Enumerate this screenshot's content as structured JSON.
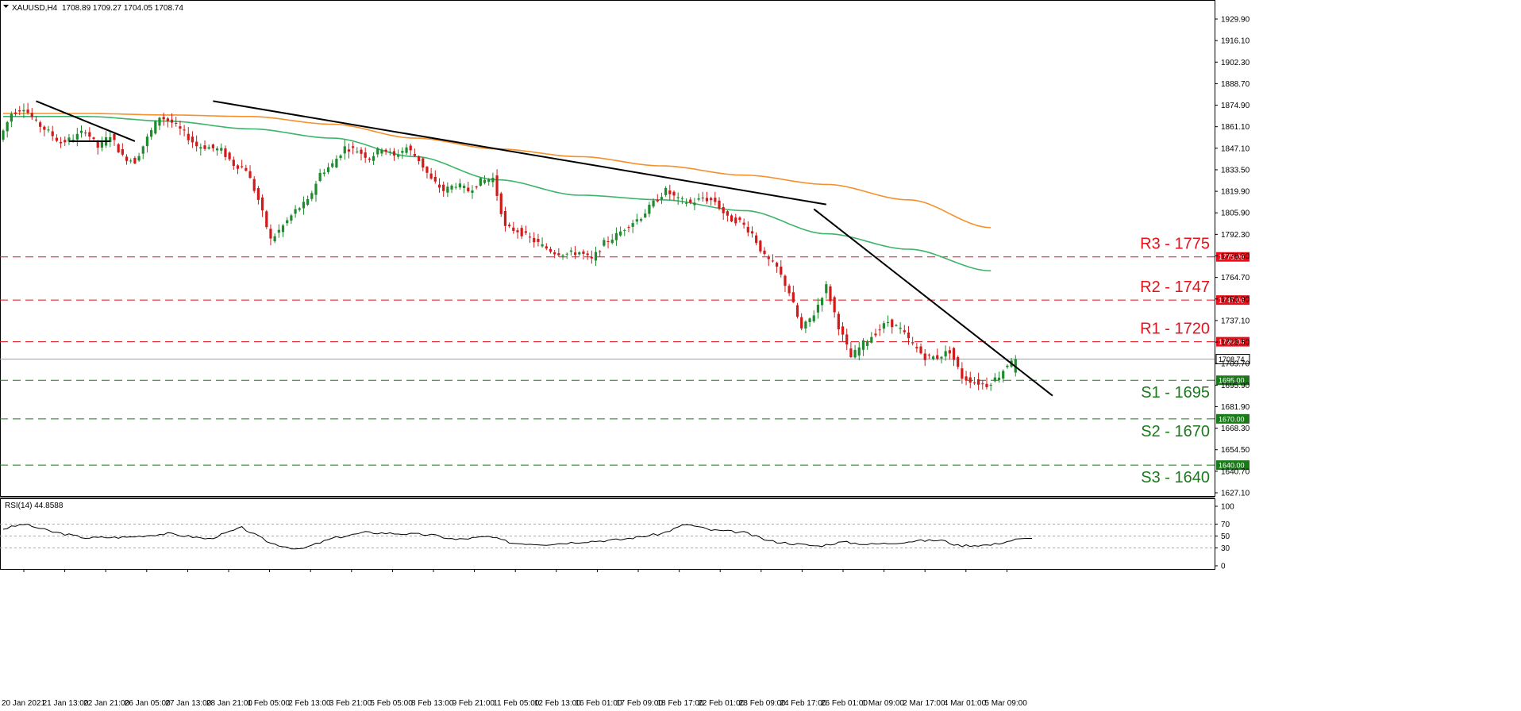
{
  "header": {
    "symbol": "XAUUSD,H4",
    "ohlc": "1708.89 1709.27 1704.05 1708.74",
    "rsi_label": "RSI(14) 44.8588"
  },
  "colors": {
    "bull": "#1f8a2e",
    "bear": "#d21a1a",
    "ma_fast": "#3cb56a",
    "ma_slow": "#f5902a",
    "resistance": "#e8101a",
    "support": "#1a7a1a",
    "current": "#9aa0a6"
  },
  "chart_data": {
    "type": "candlestick",
    "y_ticks": [
      "1929.90",
      "1916.10",
      "1902.30",
      "1888.70",
      "1874.90",
      "1861.10",
      "1847.10",
      "1833.50",
      "1819.90",
      "1805.90",
      "1792.30",
      "1778.50",
      "1764.70",
      "1750.90",
      "1737.10",
      "1723.50",
      "1709.70",
      "1695.90",
      "1681.90",
      "1668.30",
      "1654.50",
      "1640.70",
      "1627.10"
    ],
    "y_range": [
      1620,
      1940
    ],
    "x_labels": [
      "20 Jan 2021",
      "21 Jan 13:00",
      "22 Jan 21:00",
      "26 Jan 05:00",
      "27 Jan 13:00",
      "28 Jan 21:00",
      "1 Feb 05:00",
      "2 Feb 13:00",
      "3 Feb 21:00",
      "5 Feb 05:00",
      "8 Feb 13:00",
      "9 Feb 21:00",
      "11 Feb 05:00",
      "12 Feb 13:00",
      "16 Feb 01:00",
      "17 Feb 09:00",
      "18 Feb 17:00",
      "22 Feb 01:00",
      "23 Feb 09:00",
      "24 Feb 17:00",
      "26 Feb 01:00",
      "1 Mar 09:00",
      "2 Mar 17:00",
      "4 Mar 01:00",
      "5 Mar 09:00"
    ],
    "anchors": [
      [
        0,
        1851
      ],
      [
        3,
        1868
      ],
      [
        6,
        1872
      ],
      [
        9,
        1862
      ],
      [
        12,
        1856
      ],
      [
        15,
        1849
      ],
      [
        18,
        1852
      ],
      [
        21,
        1857
      ],
      [
        24,
        1846
      ],
      [
        27,
        1854
      ],
      [
        30,
        1840
      ],
      [
        33,
        1837
      ],
      [
        36,
        1852
      ],
      [
        39,
        1866
      ],
      [
        42,
        1862
      ],
      [
        45,
        1855
      ],
      [
        48,
        1847
      ],
      [
        51,
        1846
      ],
      [
        54,
        1844
      ],
      [
        57,
        1835
      ],
      [
        60,
        1832
      ],
      [
        63,
        1812
      ],
      [
        66,
        1786
      ],
      [
        69,
        1795
      ],
      [
        72,
        1805
      ],
      [
        75,
        1811
      ],
      [
        78,
        1829
      ],
      [
        81,
        1835
      ],
      [
        84,
        1846
      ],
      [
        87,
        1844
      ],
      [
        90,
        1839
      ],
      [
        93,
        1846
      ],
      [
        96,
        1840
      ],
      [
        99,
        1846
      ],
      [
        102,
        1838
      ],
      [
        105,
        1825
      ],
      [
        108,
        1818
      ],
      [
        111,
        1822
      ],
      [
        114,
        1818
      ],
      [
        117,
        1824
      ],
      [
        120,
        1826
      ],
      [
        123,
        1794
      ],
      [
        126,
        1792
      ],
      [
        129,
        1787
      ],
      [
        132,
        1782
      ],
      [
        135,
        1778
      ],
      [
        138,
        1777
      ],
      [
        141,
        1778
      ],
      [
        144,
        1773
      ],
      [
        147,
        1784
      ],
      [
        150,
        1789
      ],
      [
        153,
        1796
      ],
      [
        156,
        1801
      ],
      [
        159,
        1810
      ],
      [
        162,
        1818
      ],
      [
        165,
        1812
      ],
      [
        168,
        1810
      ],
      [
        171,
        1813
      ],
      [
        174,
        1811
      ],
      [
        177,
        1800
      ],
      [
        180,
        1798
      ],
      [
        183,
        1790
      ],
      [
        186,
        1775
      ],
      [
        189,
        1768
      ],
      [
        192,
        1752
      ],
      [
        195,
        1728
      ],
      [
        198,
        1738
      ],
      [
        201,
        1756
      ],
      [
        204,
        1730
      ],
      [
        207,
        1710
      ],
      [
        210,
        1719
      ],
      [
        213,
        1726
      ],
      [
        216,
        1733
      ],
      [
        219,
        1728
      ],
      [
        222,
        1718
      ],
      [
        225,
        1710
      ],
      [
        228,
        1710
      ],
      [
        231,
        1714
      ],
      [
        234,
        1697
      ],
      [
        237,
        1694
      ],
      [
        240,
        1692
      ],
      [
        243,
        1698
      ],
      [
        246,
        1709
      ]
    ],
    "series": [
      {
        "name": "",
        "type": "ma",
        "points": [
          [
            0,
            1866
          ],
          [
            20,
            1866
          ],
          [
            40,
            1863
          ],
          [
            60,
            1858
          ],
          [
            80,
            1852
          ],
          [
            100,
            1840
          ],
          [
            120,
            1825
          ],
          [
            140,
            1815
          ],
          [
            160,
            1812
          ],
          [
            180,
            1805
          ],
          [
            200,
            1790
          ],
          [
            220,
            1780
          ],
          [
            240,
            1766
          ]
        ]
      },
      {
        "name": "",
        "type": "ma",
        "points": [
          [
            0,
            1868
          ],
          [
            20,
            1868
          ],
          [
            40,
            1867
          ],
          [
            60,
            1866
          ],
          [
            80,
            1861
          ],
          [
            100,
            1852
          ],
          [
            120,
            1845
          ],
          [
            140,
            1840
          ],
          [
            160,
            1834
          ],
          [
            180,
            1828
          ],
          [
            200,
            1822
          ],
          [
            220,
            1812
          ],
          [
            240,
            1794
          ]
        ]
      }
    ],
    "trendlines": [
      [
        [
          8,
          1876
        ],
        [
          32,
          1850
        ]
      ],
      [
        [
          51,
          1876
        ],
        [
          200,
          1809
        ]
      ],
      [
        [
          197,
          1806
        ],
        [
          255,
          1685
        ]
      ]
    ],
    "triangle_base": [
      [
        16,
        1850
      ],
      [
        26,
        1850
      ]
    ],
    "current_price": 1708.74,
    "current_label": "1708.74",
    "resistance_levels": [
      {
        "value": 1720,
        "label": "R1 - 1720",
        "tag": "1720.00"
      },
      {
        "value": 1747,
        "label": "R2 - 1747",
        "tag": "1747.00"
      },
      {
        "value": 1775,
        "label": "R3 - 1775",
        "tag": "1775.00"
      }
    ],
    "support_levels": [
      {
        "value": 1695,
        "label": "S1 - 1695",
        "tag": "1695.00"
      },
      {
        "value": 1670,
        "label": "S2 - 1670",
        "tag": "1670.00"
      },
      {
        "value": 1640,
        "label": "S3 - 1640",
        "tag": "1640.00"
      }
    ],
    "rsi": {
      "title": "RSI(14) 44.8588",
      "range": [
        0,
        100
      ],
      "ticks": [
        "100",
        "70",
        "50",
        "30",
        "0"
      ],
      "levels": [
        70,
        50,
        30
      ],
      "points": [
        [
          0,
          62
        ],
        [
          5,
          70
        ],
        [
          12,
          57
        ],
        [
          20,
          47
        ],
        [
          30,
          48
        ],
        [
          40,
          54
        ],
        [
          50,
          45
        ],
        [
          58,
          64
        ],
        [
          65,
          38
        ],
        [
          72,
          27
        ],
        [
          80,
          46
        ],
        [
          88,
          56
        ],
        [
          96,
          54
        ],
        [
          104,
          52
        ],
        [
          110,
          44
        ],
        [
          118,
          49
        ],
        [
          124,
          38
        ],
        [
          132,
          36
        ],
        [
          140,
          40
        ],
        [
          150,
          44
        ],
        [
          160,
          54
        ],
        [
          166,
          70
        ],
        [
          172,
          60
        ],
        [
          180,
          56
        ],
        [
          186,
          42
        ],
        [
          192,
          37
        ],
        [
          198,
          33
        ],
        [
          204,
          40
        ],
        [
          210,
          36
        ],
        [
          216,
          38
        ],
        [
          222,
          42
        ],
        [
          228,
          43
        ],
        [
          232,
          34
        ],
        [
          240,
          35
        ],
        [
          246,
          44
        ],
        [
          250,
          46
        ]
      ]
    },
    "candle_count": 250,
    "x_range": [
      0,
      250
    ]
  }
}
